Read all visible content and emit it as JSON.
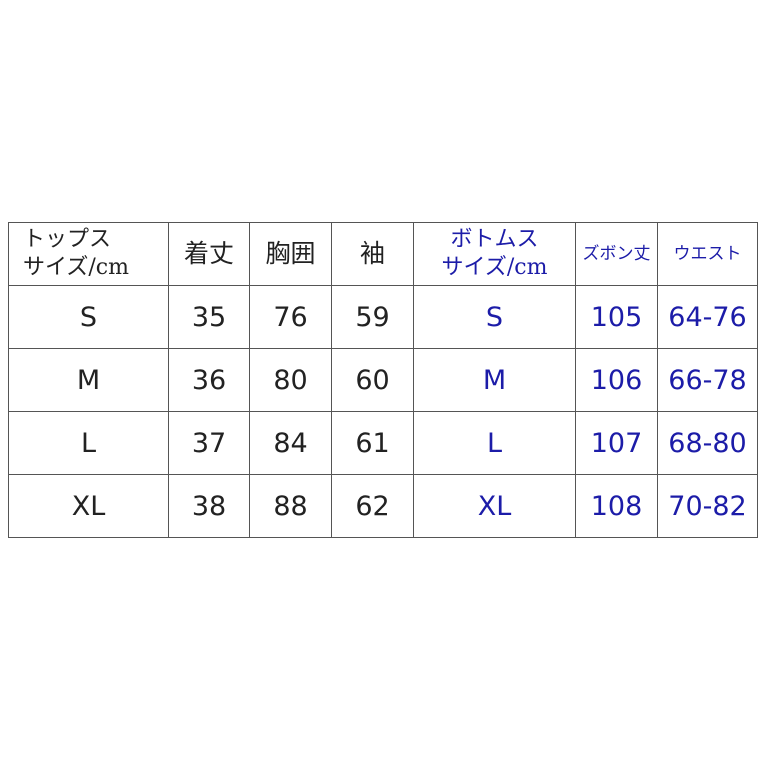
{
  "colors": {
    "text": "#222222",
    "bottoms": "#1c1ca8",
    "border": "#555555"
  },
  "headers": {
    "tops_line1": "トップス",
    "tops_line2": "サイズ/cm",
    "length": "着丈",
    "chest": "胸囲",
    "sleeve": "袖",
    "bottoms_line1": "ボトムス",
    "bottoms_line2": "サイズ/cm",
    "pants_length": "ズボン丈",
    "waist": "ウエスト"
  },
  "rows": [
    {
      "size": "S",
      "length": "35",
      "chest": "76",
      "sleeve": "59",
      "bsize": "S",
      "pants_length": "105",
      "waist": "64-76"
    },
    {
      "size": "M",
      "length": "36",
      "chest": "80",
      "sleeve": "60",
      "bsize": "M",
      "pants_length": "106",
      "waist": "66-78"
    },
    {
      "size": "L",
      "length": "37",
      "chest": "84",
      "sleeve": "61",
      "bsize": "L",
      "pants_length": "107",
      "waist": "68-80"
    },
    {
      "size": "XL",
      "length": "38",
      "chest": "88",
      "sleeve": "62",
      "bsize": "XL",
      "pants_length": "108",
      "waist": "70-82"
    }
  ]
}
